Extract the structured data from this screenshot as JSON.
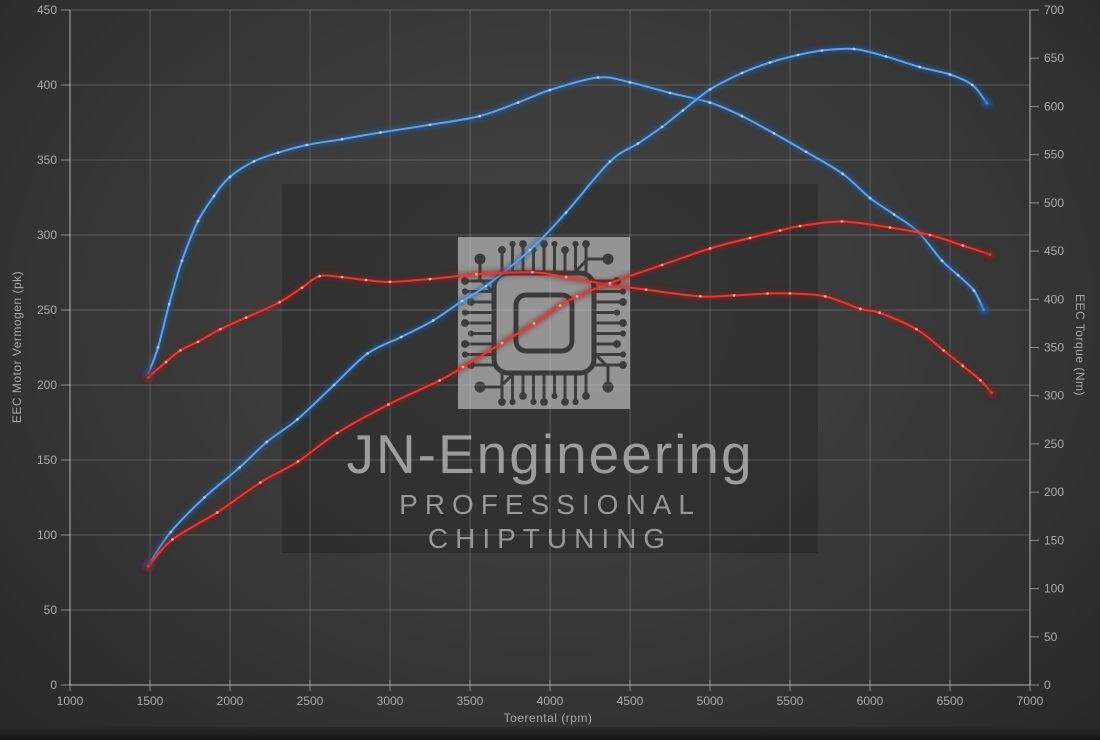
{
  "watermark": {
    "title": "JN-Engineering",
    "subtitle": "PROFESSIONAL CHIPTUNING"
  },
  "chart_data": {
    "type": "line",
    "title": "",
    "grid": true,
    "legend": "none",
    "x": {
      "label": "Toerental (rpm)",
      "min": 1000,
      "max": 7000,
      "ticks": [
        1000,
        1500,
        2000,
        2500,
        3000,
        3500,
        4000,
        4500,
        5000,
        5500,
        6000,
        6500,
        7000
      ]
    },
    "y_left": {
      "label": "EEC Motor Vermogen (pk)",
      "min": 0,
      "max": 450,
      "ticks": [
        0,
        50,
        100,
        150,
        200,
        250,
        300,
        350,
        400,
        450
      ]
    },
    "y_right": {
      "label": "EEC Torque (Nm)",
      "min": 0,
      "max": 700,
      "ticks": [
        0,
        50,
        100,
        150,
        200,
        250,
        300,
        350,
        400,
        450,
        500,
        550,
        600,
        650,
        700
      ]
    },
    "series": [
      {
        "name": "torque-tuned-blue",
        "axis": "right",
        "color": "#64a0e0",
        "glow": "#1e5fa8",
        "marker": "#bcd8f8",
        "points": [
          [
            1490,
            323
          ],
          [
            1550,
            350
          ],
          [
            1620,
            395
          ],
          [
            1700,
            440
          ],
          [
            1800,
            481
          ],
          [
            1900,
            507
          ],
          [
            2000,
            527
          ],
          [
            2150,
            543
          ],
          [
            2300,
            552
          ],
          [
            2480,
            560
          ],
          [
            2700,
            566
          ],
          [
            2940,
            573
          ],
          [
            3250,
            581
          ],
          [
            3560,
            590
          ],
          [
            3800,
            604
          ],
          [
            4000,
            617
          ],
          [
            4300,
            630
          ],
          [
            4500,
            625
          ],
          [
            4750,
            614
          ],
          [
            5000,
            604
          ],
          [
            5200,
            590
          ],
          [
            5400,
            572
          ],
          [
            5600,
            553
          ],
          [
            5830,
            530
          ],
          [
            6000,
            505
          ],
          [
            6150,
            488
          ],
          [
            6300,
            470
          ],
          [
            6450,
            440
          ],
          [
            6550,
            425
          ],
          [
            6650,
            409
          ],
          [
            6710,
            389
          ]
        ]
      },
      {
        "name": "power-tuned-blue",
        "axis": "left",
        "color": "#64a0e0",
        "glow": "#1e5fa8",
        "marker": "#bcd8f8",
        "points": [
          [
            1490,
            80
          ],
          [
            1630,
            102
          ],
          [
            1840,
            125
          ],
          [
            2060,
            145
          ],
          [
            2230,
            162
          ],
          [
            2420,
            177
          ],
          [
            2650,
            200
          ],
          [
            2860,
            221
          ],
          [
            3070,
            232
          ],
          [
            3270,
            243
          ],
          [
            3450,
            256
          ],
          [
            3600,
            266
          ],
          [
            3875,
            290
          ],
          [
            4100,
            315
          ],
          [
            4375,
            349
          ],
          [
            4550,
            361
          ],
          [
            4700,
            372
          ],
          [
            4830,
            383
          ],
          [
            5000,
            397
          ],
          [
            5200,
            408
          ],
          [
            5375,
            415
          ],
          [
            5550,
            420
          ],
          [
            5700,
            423
          ],
          [
            5900,
            424
          ],
          [
            6100,
            419
          ],
          [
            6310,
            412
          ],
          [
            6500,
            407
          ],
          [
            6640,
            400
          ],
          [
            6730,
            388
          ]
        ]
      },
      {
        "name": "torque-stock-red",
        "axis": "right",
        "color": "#e53935",
        "glow": "#8b1a1a",
        "marker": "#ffb3b3",
        "points": [
          [
            1490,
            319
          ],
          [
            1600,
            335
          ],
          [
            1690,
            347
          ],
          [
            1800,
            356
          ],
          [
            1940,
            369
          ],
          [
            2100,
            381
          ],
          [
            2310,
            397
          ],
          [
            2450,
            412
          ],
          [
            2560,
            424
          ],
          [
            2700,
            423
          ],
          [
            2850,
            420
          ],
          [
            3000,
            418
          ],
          [
            3250,
            421
          ],
          [
            3540,
            426
          ],
          [
            3890,
            428
          ],
          [
            4100,
            423
          ],
          [
            4375,
            415
          ],
          [
            4600,
            410
          ],
          [
            4940,
            403
          ],
          [
            5150,
            404
          ],
          [
            5360,
            406
          ],
          [
            5500,
            406
          ],
          [
            5720,
            403
          ],
          [
            5940,
            390
          ],
          [
            6060,
            386
          ],
          [
            6290,
            369
          ],
          [
            6460,
            347
          ],
          [
            6580,
            331
          ],
          [
            6690,
            316
          ],
          [
            6760,
            303
          ]
        ]
      },
      {
        "name": "power-stock-red",
        "axis": "left",
        "color": "#e53935",
        "glow": "#8b1a1a",
        "marker": "#ffb3b3",
        "points": [
          [
            1490,
            79
          ],
          [
            1640,
            97
          ],
          [
            1920,
            115
          ],
          [
            2190,
            135
          ],
          [
            2425,
            149
          ],
          [
            2670,
            168
          ],
          [
            2990,
            187
          ],
          [
            3310,
            203
          ],
          [
            3456,
            212
          ],
          [
            3700,
            228
          ],
          [
            3900,
            241
          ],
          [
            4063,
            253
          ],
          [
            4169,
            259
          ],
          [
            4375,
            268
          ],
          [
            4700,
            280
          ],
          [
            5000,
            291
          ],
          [
            5250,
            298
          ],
          [
            5438,
            303
          ],
          [
            5563,
            306
          ],
          [
            5825,
            309
          ],
          [
            6125,
            305
          ],
          [
            6375,
            300
          ],
          [
            6580,
            293
          ],
          [
            6750,
            287
          ]
        ]
      }
    ]
  }
}
